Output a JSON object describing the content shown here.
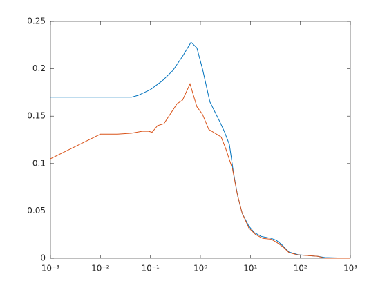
{
  "chart_data": {
    "type": "line",
    "xscale": "log",
    "xlim": [
      0.001,
      1000
    ],
    "ylim": [
      0,
      0.25
    ],
    "xticks": [
      {
        "value": 0.001,
        "label": "10⁻³"
      },
      {
        "value": 0.01,
        "label": "10⁻²"
      },
      {
        "value": 0.1,
        "label": "10⁻¹"
      },
      {
        "value": 1,
        "label": "10⁰"
      },
      {
        "value": 10,
        "label": "10¹"
      },
      {
        "value": 100,
        "label": "10²"
      },
      {
        "value": 1000,
        "label": "10³"
      }
    ],
    "yticks": [
      0,
      0.05,
      0.1,
      0.15,
      0.2,
      0.25
    ],
    "grid": false,
    "series": [
      {
        "color": "#0072BD",
        "x": [
          0.001,
          0.01,
          0.042,
          0.057,
          0.1,
          0.17,
          0.28,
          0.45,
          0.65,
          0.85,
          1.1,
          1.55,
          2.45,
          3.0,
          3.8,
          4.6,
          5.6,
          6.9,
          9.3,
          12,
          16.6,
          26,
          33,
          43,
          59,
          92,
          224,
          309,
          1000
        ],
        "values": [
          0.17,
          0.17,
          0.17,
          0.172,
          0.178,
          0.187,
          0.198,
          0.214,
          0.228,
          0.222,
          0.2,
          0.165,
          0.144,
          0.134,
          0.12,
          0.09,
          0.065,
          0.047,
          0.034,
          0.027,
          0.023,
          0.021,
          0.019,
          0.014,
          0.0066,
          0.0036,
          0.002,
          0.0007,
          0
        ]
      },
      {
        "color": "#D95319",
        "x": [
          0.001,
          0.01,
          0.022,
          0.042,
          0.068,
          0.092,
          0.108,
          0.139,
          0.186,
          0.34,
          0.44,
          0.62,
          0.85,
          1.1,
          1.47,
          2.6,
          3.2,
          4.4,
          5.4,
          6.8,
          9.3,
          12.7,
          17.6,
          26,
          33,
          45,
          59,
          86,
          224,
          309,
          1000
        ],
        "values": [
          0.105,
          0.131,
          0.131,
          0.132,
          0.134,
          0.134,
          0.133,
          0.14,
          0.142,
          0.163,
          0.167,
          0.184,
          0.16,
          0.152,
          0.136,
          0.128,
          0.116,
          0.094,
          0.069,
          0.048,
          0.032,
          0.025,
          0.021,
          0.02,
          0.017,
          0.012,
          0.006,
          0.0036,
          0.002,
          0,
          0
        ]
      }
    ]
  }
}
